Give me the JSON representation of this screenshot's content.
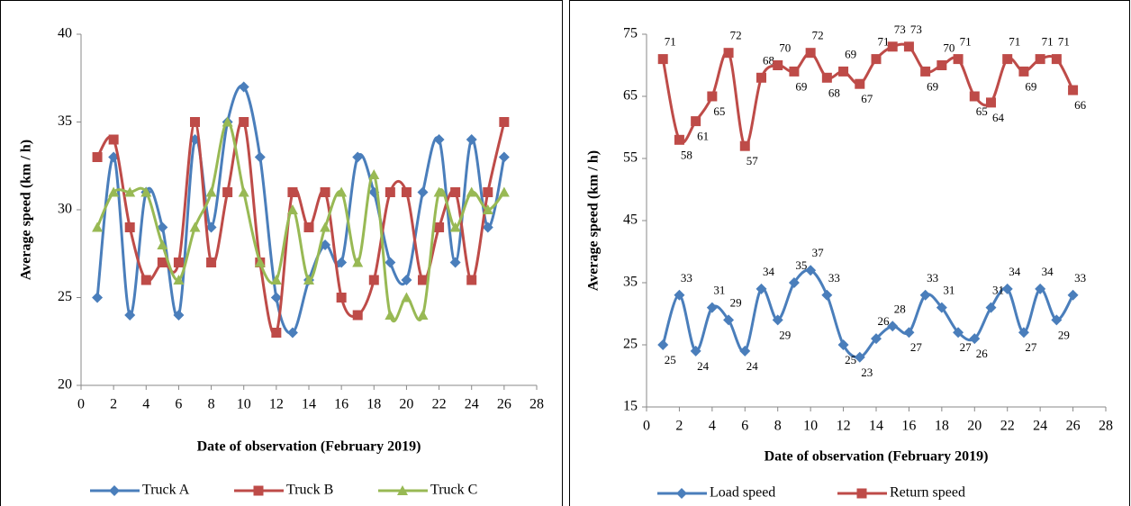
{
  "chart_data": [
    {
      "type": "line",
      "x_label": "Date of observation (February 2019)",
      "y_label": "Average speed (km / h)",
      "x": [
        1,
        2,
        3,
        4,
        5,
        6,
        7,
        8,
        9,
        10,
        11,
        12,
        13,
        14,
        15,
        16,
        17,
        18,
        19,
        20,
        21,
        22,
        23,
        24,
        25,
        26
      ],
      "xlim": [
        0,
        28
      ],
      "xticks": [
        0,
        2,
        4,
        6,
        8,
        10,
        12,
        14,
        16,
        18,
        20,
        22,
        24,
        26,
        28
      ],
      "ylim": [
        20,
        40
      ],
      "yticks": [
        20,
        25,
        30,
        35,
        40
      ],
      "smooth": true,
      "legend": "bottom",
      "data_labels": false,
      "series": [
        {
          "name": "Truck A",
          "color": "#4a7ebb",
          "marker": "diamond",
          "values": [
            25,
            33,
            24,
            31,
            29,
            24,
            34,
            29,
            35,
            37,
            33,
            25,
            23,
            26,
            28,
            27,
            33,
            31,
            27,
            26,
            31,
            34,
            27,
            34,
            29,
            33
          ]
        },
        {
          "name": "Truck B",
          "color": "#be4b48",
          "marker": "square",
          "values": [
            33,
            34,
            29,
            26,
            27,
            27,
            35,
            27,
            31,
            35,
            27,
            23,
            31,
            29,
            31,
            25,
            24,
            26,
            31,
            31,
            26,
            29,
            31,
            26,
            31,
            35
          ]
        },
        {
          "name": "Truck C",
          "color": "#98b954",
          "marker": "triangle",
          "values": [
            29,
            31,
            31,
            31,
            28,
            26,
            29,
            31,
            35,
            31,
            27,
            26,
            30,
            26,
            29,
            31,
            27,
            32,
            24,
            25,
            24,
            31,
            29,
            31,
            30,
            31
          ]
        }
      ]
    },
    {
      "type": "line",
      "x_label": "Date of observation (February 2019)",
      "y_label": "Average speed (km / h)",
      "x": [
        1,
        2,
        3,
        4,
        5,
        6,
        7,
        8,
        9,
        10,
        11,
        12,
        13,
        14,
        15,
        16,
        17,
        18,
        19,
        20,
        21,
        22,
        23,
        24,
        25,
        26
      ],
      "xlim": [
        0,
        28
      ],
      "xticks": [
        0,
        2,
        4,
        6,
        8,
        10,
        12,
        14,
        16,
        18,
        20,
        22,
        24,
        26,
        28
      ],
      "ylim": [
        15,
        75
      ],
      "yticks": [
        15,
        25,
        35,
        45,
        55,
        65,
        75
      ],
      "smooth": true,
      "legend": "bottom",
      "data_labels": true,
      "series": [
        {
          "name": "Load speed",
          "color": "#4a7ebb",
          "marker": "diamond",
          "values": [
            25,
            33,
            24,
            31,
            29,
            24,
            34,
            29,
            35,
            37,
            33,
            25,
            23,
            26,
            28,
            27,
            33,
            31,
            27,
            26,
            31,
            34,
            27,
            34,
            29,
            33
          ]
        },
        {
          "name": "Return speed",
          "color": "#be4b48",
          "marker": "square",
          "values": [
            71,
            58,
            61,
            65,
            72,
            57,
            68,
            70,
            69,
            72,
            68,
            69,
            67,
            71,
            73,
            73,
            69,
            70,
            71,
            65,
            64,
            71,
            69,
            71,
            71,
            66
          ]
        }
      ]
    }
  ]
}
